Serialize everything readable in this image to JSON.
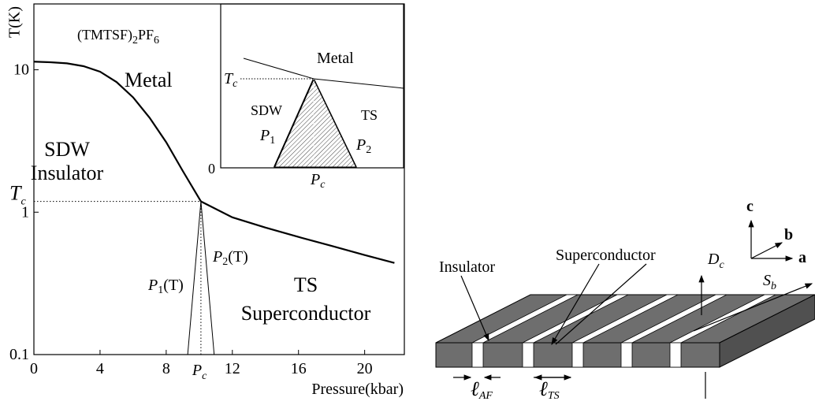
{
  "chart_data": {
    "type": "line",
    "yscale": "log",
    "grid": false,
    "ylabel": "T(K)",
    "xlabel": "Pressure(kbar)",
    "compound": {
      "base": "(TMTSF)",
      "sub1": "2",
      "mid": "PF",
      "sub2": "6"
    },
    "xlim": [
      0,
      22.4
    ],
    "xticks": [
      0,
      4,
      8,
      12,
      16,
      20
    ],
    "ylim": [
      0.1,
      29
    ],
    "yticks": [
      0.1,
      1,
      10
    ],
    "regions": {
      "metal": "Metal",
      "sdw": "SDW",
      "insulator": "Insulator",
      "ts": "TS",
      "superconductor": "Superconductor"
    },
    "boundary_labels": {
      "p1": {
        "base": "P",
        "sub": "1",
        "tail": "(T)"
      },
      "p2": {
        "base": "P",
        "sub": "2",
        "tail": "(T)"
      }
    },
    "annotations": {
      "Tc": {
        "base": "T",
        "sub": "c",
        "value": 1.19
      },
      "Pc": {
        "base": "P",
        "sub": "c",
        "value": 10.1
      }
    },
    "series": [
      {
        "color": "#000000",
        "line_width": 2.2,
        "x": [
          0,
          1,
          2,
          3,
          4,
          5,
          6,
          7,
          8,
          9,
          10.1
        ],
        "values": [
          11.4,
          11.3,
          11.1,
          10.6,
          9.7,
          8.2,
          6.4,
          4.6,
          3.1,
          1.95,
          1.19
        ]
      },
      {
        "color": "#000000",
        "line_width": 2.2,
        "x": [
          10.1,
          12,
          14,
          16,
          18,
          20,
          21.8
        ],
        "values": [
          1.19,
          0.92,
          0.78,
          0.67,
          0.58,
          0.5,
          0.44
        ]
      },
      {
        "color": "#000000",
        "line_width": 1,
        "x": [
          9.3,
          10.1
        ],
        "values": [
          0.1,
          1.19
        ]
      },
      {
        "color": "#000000",
        "line_width": 1,
        "x": [
          10.9,
          10.1
        ],
        "values": [
          0.1,
          1.19
        ]
      }
    ]
  },
  "inset": {
    "metal": "Metal",
    "sdw": "SDW",
    "ts": "TS",
    "zero": "0",
    "tc": {
      "base": "T",
      "sub": "c"
    },
    "pc": {
      "base": "P",
      "sub": "c"
    },
    "p1": {
      "base": "P",
      "sub": "1"
    },
    "p2": {
      "base": "P",
      "sub": "2"
    }
  },
  "schematic": {
    "insulator": "Insulator",
    "superconductor": "Superconductor",
    "axis_a": "a",
    "axis_b": "b",
    "axis_c": "c",
    "dc": {
      "base": "D",
      "sub": "c"
    },
    "sb": {
      "base": "S",
      "sub": "b"
    },
    "l_af": {
      "base": "ℓ",
      "sub": "AF"
    },
    "l_ts": {
      "base": "ℓ",
      "sub": "TS"
    }
  }
}
